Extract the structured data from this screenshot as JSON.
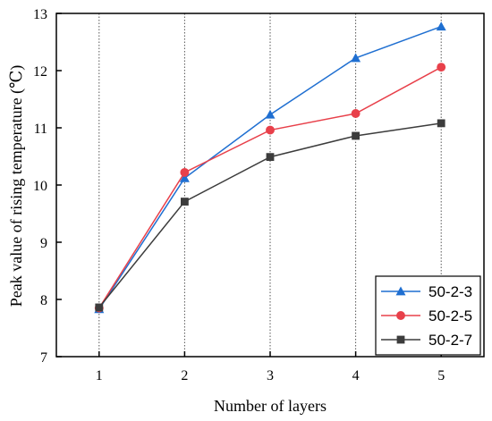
{
  "chart_data": {
    "type": "line",
    "xlabel": "Number of layers",
    "ylabel": "Peak value of rising temperature (℃)",
    "xlim": [
      0.5,
      5.5
    ],
    "ylim": [
      7,
      13
    ],
    "x": [
      1,
      2,
      3,
      4,
      5
    ],
    "xticks": [
      "1",
      "2",
      "3",
      "4",
      "5"
    ],
    "yticks": [
      "7",
      "8",
      "9",
      "10",
      "11",
      "12",
      "13"
    ],
    "grid": "vertical dotted lines at each x tick",
    "legend_position": "bottom-right",
    "series": [
      {
        "name": "50-2-3",
        "marker": "triangle",
        "color": "#1f6fd1",
        "values": [
          7.83,
          10.12,
          11.23,
          12.22,
          12.77
        ]
      },
      {
        "name": "50-2-5",
        "marker": "circle",
        "color": "#e8404a",
        "values": [
          7.85,
          10.22,
          10.96,
          11.25,
          12.06
        ]
      },
      {
        "name": "50-2-7",
        "marker": "square",
        "color": "#3c3c3c",
        "values": [
          7.86,
          9.71,
          10.49,
          10.86,
          11.08
        ]
      }
    ]
  }
}
